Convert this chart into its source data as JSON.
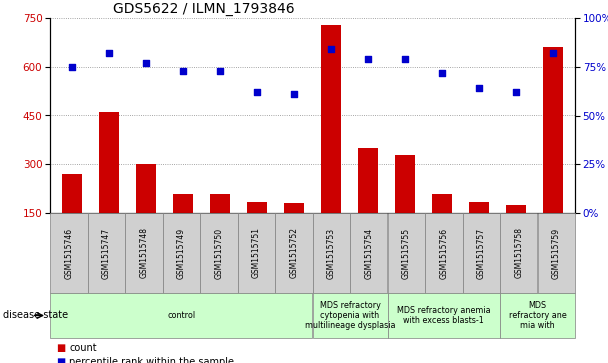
{
  "title": "GDS5622 / ILMN_1793846",
  "samples": [
    "GSM1515746",
    "GSM1515747",
    "GSM1515748",
    "GSM1515749",
    "GSM1515750",
    "GSM1515751",
    "GSM1515752",
    "GSM1515753",
    "GSM1515754",
    "GSM1515755",
    "GSM1515756",
    "GSM1515757",
    "GSM1515758",
    "GSM1515759"
  ],
  "counts": [
    270,
    460,
    300,
    210,
    210,
    185,
    180,
    730,
    350,
    330,
    210,
    185,
    175,
    660
  ],
  "percentile_ranks": [
    75,
    82,
    77,
    73,
    73,
    62,
    61,
    84,
    79,
    79,
    72,
    64,
    62,
    82
  ],
  "ylim_left": [
    150,
    750
  ],
  "ylim_right": [
    0,
    100
  ],
  "yticks_left": [
    150,
    300,
    450,
    600,
    750
  ],
  "yticks_right": [
    0,
    25,
    50,
    75,
    100
  ],
  "group_spans": [
    {
      "start": 0,
      "end": 7,
      "label": "control"
    },
    {
      "start": 7,
      "end": 9,
      "label": "MDS refractory\ncytopenia with\nmultilineage dysplasia"
    },
    {
      "start": 9,
      "end": 12,
      "label": "MDS refractory anemia\nwith excess blasts-1"
    },
    {
      "start": 12,
      "end": 14,
      "label": "MDS\nrefractory ane\nmia with"
    }
  ],
  "bar_color": "#cc0000",
  "dot_color": "#0000cc",
  "grid_color": "#888888",
  "bg_color": "#ffffff",
  "bar_width": 0.55,
  "label_color_left": "#cc0000",
  "label_color_right": "#0000cc",
  "group_bg": "#ccffcc",
  "sample_box_bg": "#d0d0d0",
  "legend_items": [
    {
      "label": "count",
      "color": "#cc0000"
    },
    {
      "label": "percentile rank within the sample",
      "color": "#0000cc"
    }
  ]
}
